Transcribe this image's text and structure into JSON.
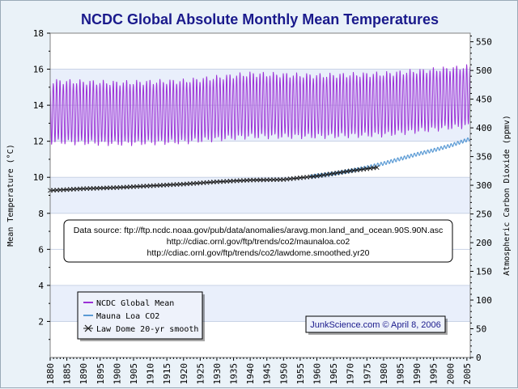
{
  "chart_data": {
    "type": "line",
    "title": "NCDC Global Absolute Monthly Mean Temperatures",
    "ylabel_left": "Mean Temperature (°C)",
    "ylabel_right": "Atmospheric Carbon Dioxide (ppmv)",
    "xlim": [
      1880,
      2006
    ],
    "ylim_left": [
      0,
      18
    ],
    "ylim_right": [
      0,
      565
    ],
    "x_ticks": [
      1880,
      1885,
      1890,
      1895,
      1900,
      1905,
      1910,
      1915,
      1920,
      1925,
      1930,
      1935,
      1940,
      1945,
      1950,
      1955,
      1960,
      1965,
      1970,
      1975,
      1980,
      1985,
      1990,
      1995,
      2000,
      2005
    ],
    "y_ticks_left": [
      2,
      4,
      6,
      8,
      10,
      12,
      14,
      16,
      18
    ],
    "y_ticks_right": [
      0,
      50,
      100,
      150,
      200,
      250,
      300,
      350,
      400,
      450,
      500,
      550
    ],
    "grid": true,
    "series": [
      {
        "name": "NCDC Global Mean",
        "color": "#9b30d6",
        "axis": "left",
        "kind": "seasonal_monthly",
        "x_range": [
          1880,
          2006
        ],
        "upper_envelope": {
          "x": [
            1880,
            1900,
            1920,
            1940,
            1960,
            1980,
            2000,
            2006
          ],
          "y": [
            15.5,
            15.4,
            15.5,
            15.9,
            15.8,
            15.9,
            16.2,
            16.3
          ]
        },
        "lower_envelope": {
          "x": [
            1880,
            1900,
            1920,
            1940,
            1960,
            1980,
            2000,
            2006
          ],
          "y": [
            11.8,
            11.7,
            11.8,
            12.1,
            12.1,
            12.2,
            12.6,
            12.7
          ]
        }
      },
      {
        "name": "Mauna Loa CO2",
        "color": "#5b9bd5",
        "axis": "right",
        "kind": "seasonal_monthly",
        "x": [
          1958,
          1960,
          1965,
          1970,
          1975,
          1980,
          1985,
          1990,
          1995,
          2000,
          2005,
          2006
        ],
        "y": [
          315,
          317,
          320,
          325,
          331,
          338,
          346,
          354,
          361,
          369,
          379,
          381
        ],
        "seasonal_amplitude": 3
      },
      {
        "name": "Law Dome 20-yr smooth",
        "color": "#1a1a1a",
        "axis": "right",
        "marker": "x",
        "x": [
          1880,
          1890,
          1900,
          1910,
          1920,
          1930,
          1940,
          1950,
          1960,
          1970,
          1978
        ],
        "y": [
          291,
          294,
          296,
          299,
          302,
          306,
          309,
          310,
          316,
          325,
          331
        ]
      }
    ],
    "annotations": {
      "source_lines": [
        "Data source: ftp://ftp.ncdc.noaa.gov/pub/data/anomalies/aravg.mon.land_and_ocean.90S.90N.asc",
        "http://cdiac.ornl.gov/ftp/trends/co2/maunaloa.co2",
        "http://cdiac.ornl.gov/ftp/trends/co2/lawdome.smoothed.yr20"
      ],
      "credit": "JunkScience.com © April 8, 2006"
    },
    "legend_position": "bottom-left",
    "colors": {
      "background": "#eaf2f8",
      "plot_bg": "#ffffff",
      "band": "#e9effb",
      "title": "#1a1a8c"
    }
  }
}
